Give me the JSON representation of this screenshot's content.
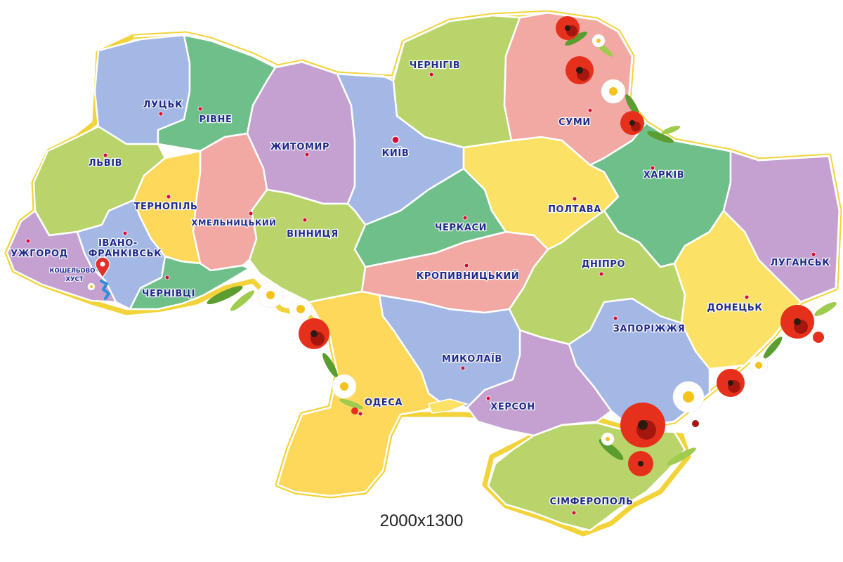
{
  "map": {
    "caption": "2000x1300",
    "colors": {
      "green": "#b9d46b",
      "teal": "#6fbf8a",
      "blue": "#a3b8e4",
      "purple": "#c5a1d2",
      "pink": "#f2a9a3",
      "yellow": "#fbe266",
      "gold": "#fed85a",
      "outline": "#f2d33a",
      "label": "#1f2a8a",
      "dot": "#d0103a"
    },
    "regions": [
      {
        "id": "lutsk",
        "city": "ЛУЦЬК",
        "color": "blue"
      },
      {
        "id": "rivne",
        "city": "РІВНЕ",
        "color": "teal"
      },
      {
        "id": "lviv",
        "city": "ЛЬВІВ",
        "color": "green"
      },
      {
        "id": "zhytomyr",
        "city": "ЖИТОМИР",
        "color": "purple"
      },
      {
        "id": "kyiv",
        "city": "КИЇВ",
        "color": "blue"
      },
      {
        "id": "chernihiv",
        "city": "ЧЕРНІГІВ",
        "color": "green"
      },
      {
        "id": "sumy",
        "city": "СУМИ",
        "color": "pink"
      },
      {
        "id": "kharkiv",
        "city": "ХАРКІВ",
        "color": "teal"
      },
      {
        "id": "poltava",
        "city": "ПОЛТАВА",
        "color": "yellow"
      },
      {
        "id": "luhansk",
        "city": "ЛУГАНСЬК",
        "color": "purple"
      },
      {
        "id": "donetsk",
        "city": "ДОНЕЦЬК",
        "color": "yellow"
      },
      {
        "id": "dnipro",
        "city": "ДНІПРО",
        "color": "green"
      },
      {
        "id": "zaporizhzhia",
        "city": "ЗАПОРІЖЖЯ",
        "color": "blue"
      },
      {
        "id": "kherson",
        "city": "ХЕРСОН",
        "color": "purple"
      },
      {
        "id": "mykolaiv",
        "city": "МИКОЛАЇВ",
        "color": "blue"
      },
      {
        "id": "kropyvnytskyi",
        "city": "КРОПИВНИЦЬКИЙ",
        "color": "pink"
      },
      {
        "id": "cherkasy",
        "city": "ЧЕРКАСИ",
        "color": "teal"
      },
      {
        "id": "vinnytsia",
        "city": "ВІННИЦЯ",
        "color": "green"
      },
      {
        "id": "khmelnytskyi",
        "city": "ХМЕЛЬНИЦЬКИЙ",
        "color": "pink"
      },
      {
        "id": "ternopil",
        "city": "ТЕРНОПІЛЬ",
        "color": "gold"
      },
      {
        "id": "ivano-frankivsk",
        "city": "ІВАНО-ФРАНКІВСЬК",
        "city_line1": "ІВАНО-",
        "city_line2": "ФРАНКІВСЬК",
        "color": "blue"
      },
      {
        "id": "chernivtsi",
        "city": "ЧЕРНІВЦІ",
        "color": "teal"
      },
      {
        "id": "uzhhorod",
        "city": "УЖГОРОД",
        "color": "purple"
      },
      {
        "id": "odesa",
        "city": "ОДЕСА",
        "color": "gold"
      },
      {
        "id": "simferopol",
        "city": "СІМФЕРОПОЛЬ",
        "color": "green"
      }
    ],
    "marker": {
      "label_line1": "КОШЕЛЬОВО",
      "label_line2": "ХУСТ",
      "icon": "location-pin-icon"
    }
  }
}
